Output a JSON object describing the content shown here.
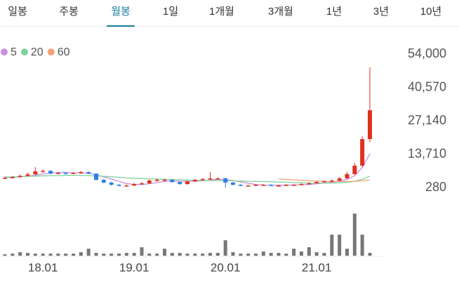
{
  "tabs": [
    "일봉",
    "주봉",
    "월봉",
    "1일",
    "1개월",
    "3개월",
    "1년",
    "3년",
    "10년"
  ],
  "active_tab": 2,
  "chart_data": {
    "type": "candlestick",
    "categories": [
      null,
      null,
      null,
      null,
      null,
      "18.01",
      null,
      null,
      null,
      null,
      null,
      null,
      null,
      null,
      null,
      null,
      null,
      "19.01",
      null,
      null,
      null,
      null,
      null,
      null,
      null,
      null,
      null,
      null,
      null,
      "20.01",
      null,
      null,
      null,
      null,
      null,
      null,
      null,
      null,
      null,
      null,
      null,
      "21.01",
      null,
      null,
      null,
      null,
      null,
      null,
      null
    ],
    "open": [
      4000,
      4200,
      4500,
      5000,
      5600,
      6800,
      7000,
      5900,
      6200,
      5900,
      6200,
      6500,
      5900,
      3400,
      2300,
      1400,
      1100,
      1100,
      1700,
      2000,
      3100,
      3400,
      3400,
      2500,
      1700,
      2800,
      3400,
      3700,
      4000,
      4000,
      2300,
      1400,
      1100,
      1100,
      1400,
      1400,
      1100,
      1100,
      1400,
      1400,
      1700,
      2000,
      2500,
      2800,
      3100,
      4000,
      5700,
      9100,
      19800
    ],
    "high": [
      4800,
      5000,
      5500,
      6300,
      8500,
      7600,
      7300,
      6600,
      6500,
      6600,
      7000,
      6900,
      6000,
      3800,
      2700,
      1800,
      1600,
      2200,
      2500,
      3600,
      3900,
      3900,
      3600,
      2800,
      3200,
      3800,
      4200,
      6500,
      4400,
      4300,
      2600,
      1700,
      1500,
      1700,
      1800,
      1700,
      1500,
      1700,
      1800,
      2100,
      2400,
      2900,
      3200,
      3600,
      4600,
      6600,
      10200,
      21000,
      48700
    ],
    "low": [
      3700,
      3900,
      4300,
      4700,
      5300,
      6300,
      5600,
      5600,
      5500,
      5600,
      5800,
      5600,
      3100,
      2000,
      1100,
      800,
      800,
      900,
      1400,
      1700,
      2700,
      3000,
      2200,
      1400,
      1400,
      2500,
      3100,
      3300,
      3600,
      300,
      1100,
      800,
      800,
      900,
      1100,
      800,
      800,
      900,
      1100,
      1300,
      1600,
      2200,
      2500,
      2700,
      2900,
      3700,
      5400,
      8600,
      18500
    ],
    "close": [
      4200,
      4500,
      5000,
      5600,
      6800,
      7000,
      5900,
      6200,
      5900,
      6200,
      6500,
      5900,
      3400,
      2300,
      1400,
      1100,
      1100,
      1700,
      2000,
      3100,
      3400,
      3400,
      2500,
      1700,
      2800,
      3400,
      3700,
      4000,
      4000,
      2300,
      1400,
      1100,
      1100,
      1400,
      1400,
      1100,
      1100,
      1400,
      1400,
      1700,
      2000,
      2500,
      2800,
      3100,
      4000,
      5700,
      9100,
      19800,
      31400
    ],
    "up_color": "#e0301e",
    "down_color": "#2f7fe8",
    "series": [
      {
        "name": "5",
        "color": "#c98fe3",
        "values": [
          4300,
          4400,
          4600,
          4900,
          5200,
          5800,
          6100,
          6300,
          6400,
          6200,
          6100,
          6100,
          5400,
          4600,
          3700,
          2800,
          1900,
          1500,
          1500,
          1800,
          2300,
          2700,
          3000,
          2800,
          2700,
          2800,
          3000,
          3300,
          3600,
          3500,
          3100,
          2600,
          2000,
          1500,
          1300,
          1200,
          1200,
          1300,
          1300,
          1400,
          1500,
          1800,
          2100,
          2400,
          2900,
          3600,
          5000,
          8300,
          13900
        ]
      },
      {
        "name": "20",
        "color": "#7fd29a",
        "values": [
          4500,
          4600,
          4700,
          4800,
          4900,
          5000,
          5100,
          5100,
          5200,
          5200,
          5200,
          5100,
          5000,
          4800,
          4600,
          4400,
          4200,
          4000,
          3900,
          3800,
          3700,
          3600,
          3500,
          3400,
          3300,
          3200,
          3100,
          3100,
          3100,
          3000,
          3000,
          2900,
          2800,
          2800,
          2700,
          2600,
          2500,
          2400,
          2300,
          2200,
          2100,
          2100,
          2100,
          2100,
          2200,
          2400,
          2800,
          3600,
          4900
        ]
      },
      {
        "name": "60",
        "color": "#f4a07a",
        "values": [
          null,
          null,
          null,
          null,
          null,
          null,
          null,
          null,
          null,
          null,
          null,
          null,
          null,
          null,
          null,
          null,
          null,
          null,
          null,
          null,
          null,
          null,
          null,
          null,
          null,
          null,
          null,
          null,
          null,
          null,
          null,
          null,
          null,
          null,
          null,
          null,
          3700,
          3600,
          3400,
          3200,
          3000,
          2900,
          2800,
          2700,
          2700,
          2700,
          2800,
          3000,
          3400
        ]
      }
    ],
    "volume": {
      "color": "#777777",
      "ylim": [
        0,
        60
      ],
      "values": [
        2,
        3,
        5,
        4,
        3,
        3,
        3,
        3,
        3,
        3,
        5,
        10,
        4,
        3,
        3,
        3,
        4,
        4,
        12,
        3,
        3,
        10,
        4,
        4,
        3,
        3,
        3,
        4,
        4,
        22,
        5,
        3,
        3,
        3,
        6,
        4,
        4,
        3,
        10,
        6,
        12,
        5,
        4,
        30,
        30,
        10,
        60,
        30,
        4
      ]
    },
    "ylim": [
      280,
      54000
    ],
    "yticks": [
      280,
      {
        "value": 13710,
        "label": "13,710"
      },
      {
        "value": 27140,
        "label": "27,140"
      },
      {
        "value": 40570,
        "label": "40,570"
      },
      {
        "value": 54000,
        "label": "54,000"
      }
    ]
  }
}
